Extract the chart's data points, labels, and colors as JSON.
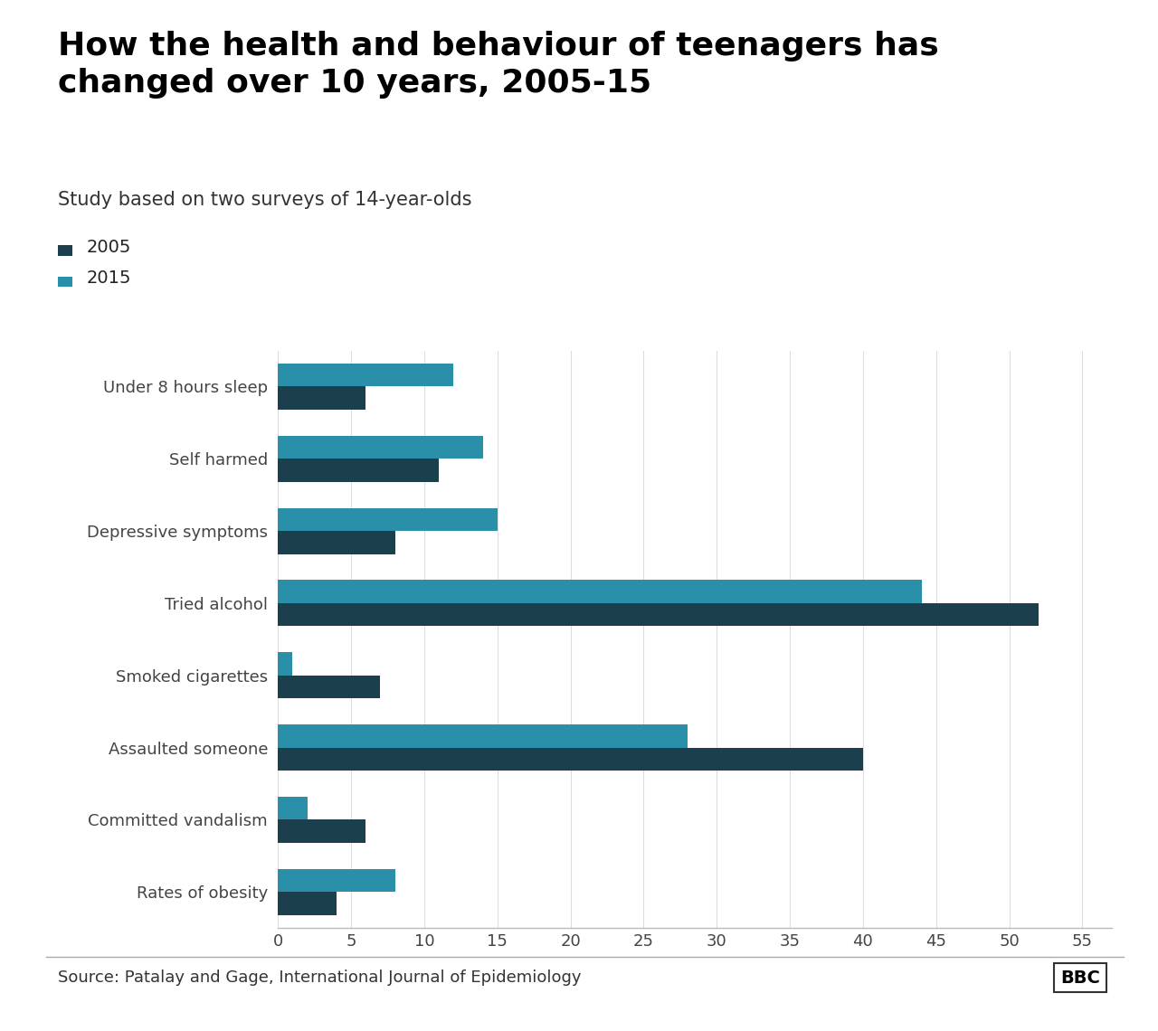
{
  "title": "How the health and behaviour of teenagers has\nchanged over 10 years, 2005-15",
  "subtitle": "Study based on two surveys of 14-year-olds",
  "categories": [
    "Under 8 hours sleep",
    "Self harmed",
    "Depressive symptoms",
    "Tried alcohol",
    "Smoked cigarettes",
    "Assaulted someone",
    "Committed vandalism",
    "Rates of obesity"
  ],
  "values_2005": [
    6,
    11,
    8,
    52,
    7,
    40,
    6,
    4
  ],
  "values_2015": [
    12,
    14,
    15,
    44,
    1,
    28,
    2,
    8
  ],
  "color_2005": "#1c3f4e",
  "color_2015": "#2a8fa8",
  "xlim": [
    0,
    57
  ],
  "xticks": [
    0,
    5,
    10,
    15,
    20,
    25,
    30,
    35,
    40,
    45,
    50,
    55
  ],
  "legend_2005": "2005",
  "legend_2015": "2015",
  "source_text": "Source: Patalay and Gage, International Journal of Epidemiology",
  "bbc_text": "BBC",
  "background_color": "#ffffff",
  "bar_height": 0.32,
  "title_fontsize": 26,
  "subtitle_fontsize": 15,
  "axis_fontsize": 13,
  "legend_fontsize": 14,
  "source_fontsize": 13
}
